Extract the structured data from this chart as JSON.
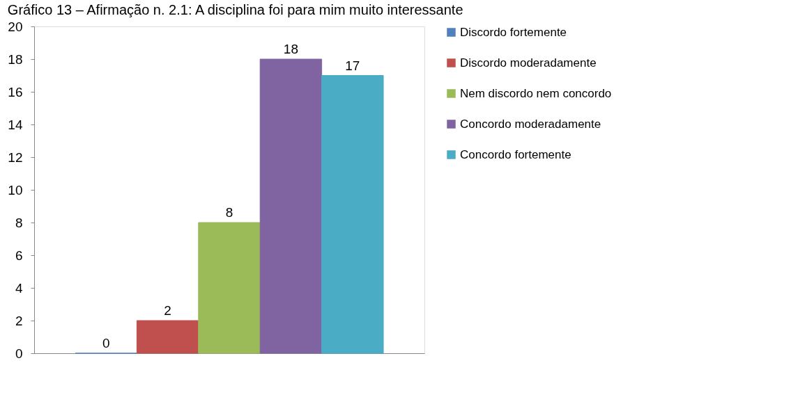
{
  "chart_data": {
    "type": "bar",
    "title": "Gráfico 13 – Afirmação n. 2.1: A disciplina foi para mim muito interessante",
    "categories": [
      null
    ],
    "series": [
      {
        "name": "Discordo fortemente",
        "color": "#4f81bd",
        "values": [
          0
        ]
      },
      {
        "name": "Discordo moderadamente",
        "color": "#c0504d",
        "values": [
          2
        ]
      },
      {
        "name": "Nem discordo nem concordo",
        "color": "#9bbb59",
        "values": [
          8
        ]
      },
      {
        "name": "Concordo moderadamente",
        "color": "#8064a2",
        "values": [
          18
        ]
      },
      {
        "name": "Concordo fortemente",
        "color": "#4bacc6",
        "values": [
          17
        ]
      }
    ],
    "ylim": [
      0,
      20
    ],
    "yticks": [
      0,
      2,
      4,
      6,
      8,
      10,
      12,
      14,
      16,
      18,
      20
    ],
    "data_labels": true,
    "grid": false,
    "legend": "right"
  }
}
